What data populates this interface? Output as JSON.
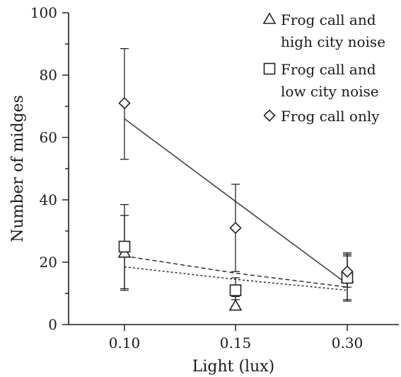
{
  "chart_data": {
    "type": "scatter",
    "xlabel": "Light (lux)",
    "ylabel": "Number of midges",
    "categories": [
      "0.10",
      "0.15",
      "0.30"
    ],
    "ylim": [
      0,
      100
    ],
    "yticks": [
      "0",
      "20",
      "40",
      "60",
      "80",
      "100"
    ],
    "legend_position": "top-right",
    "series": [
      {
        "name": "Frog call and high city noise",
        "marker": "triangle",
        "line": "dashed",
        "values": [
          23,
          6,
          15
        ],
        "err_low": [
          11,
          8,
          7.5
        ],
        "err_high": [
          35,
          9,
          22
        ],
        "fit": [
          22,
          16.5,
          12
        ]
      },
      {
        "name": "Frog call and low city noise",
        "marker": "square",
        "line": "dotted",
        "values": [
          25,
          11,
          15
        ],
        "err_low": [
          11.5,
          6,
          8
        ],
        "err_high": [
          38.5,
          15,
          22.5
        ],
        "fit": [
          18.5,
          14.5,
          11
        ]
      },
      {
        "name": "Frog call only",
        "marker": "diamond",
        "line": "solid",
        "values": [
          71,
          31,
          17
        ],
        "err_low": [
          53,
          17,
          12
        ],
        "err_high": [
          88.5,
          45,
          23
        ],
        "fit": [
          66,
          39.5,
          13
        ]
      }
    ],
    "legend_lines": [
      [
        "Frog call and",
        "high city noise"
      ],
      [
        "Frog call and",
        "low city noise"
      ],
      [
        "Frog call only"
      ]
    ]
  },
  "colors": {
    "axis": "#1a1a1a",
    "marks": "#222222",
    "fit_solid": "#444444"
  }
}
